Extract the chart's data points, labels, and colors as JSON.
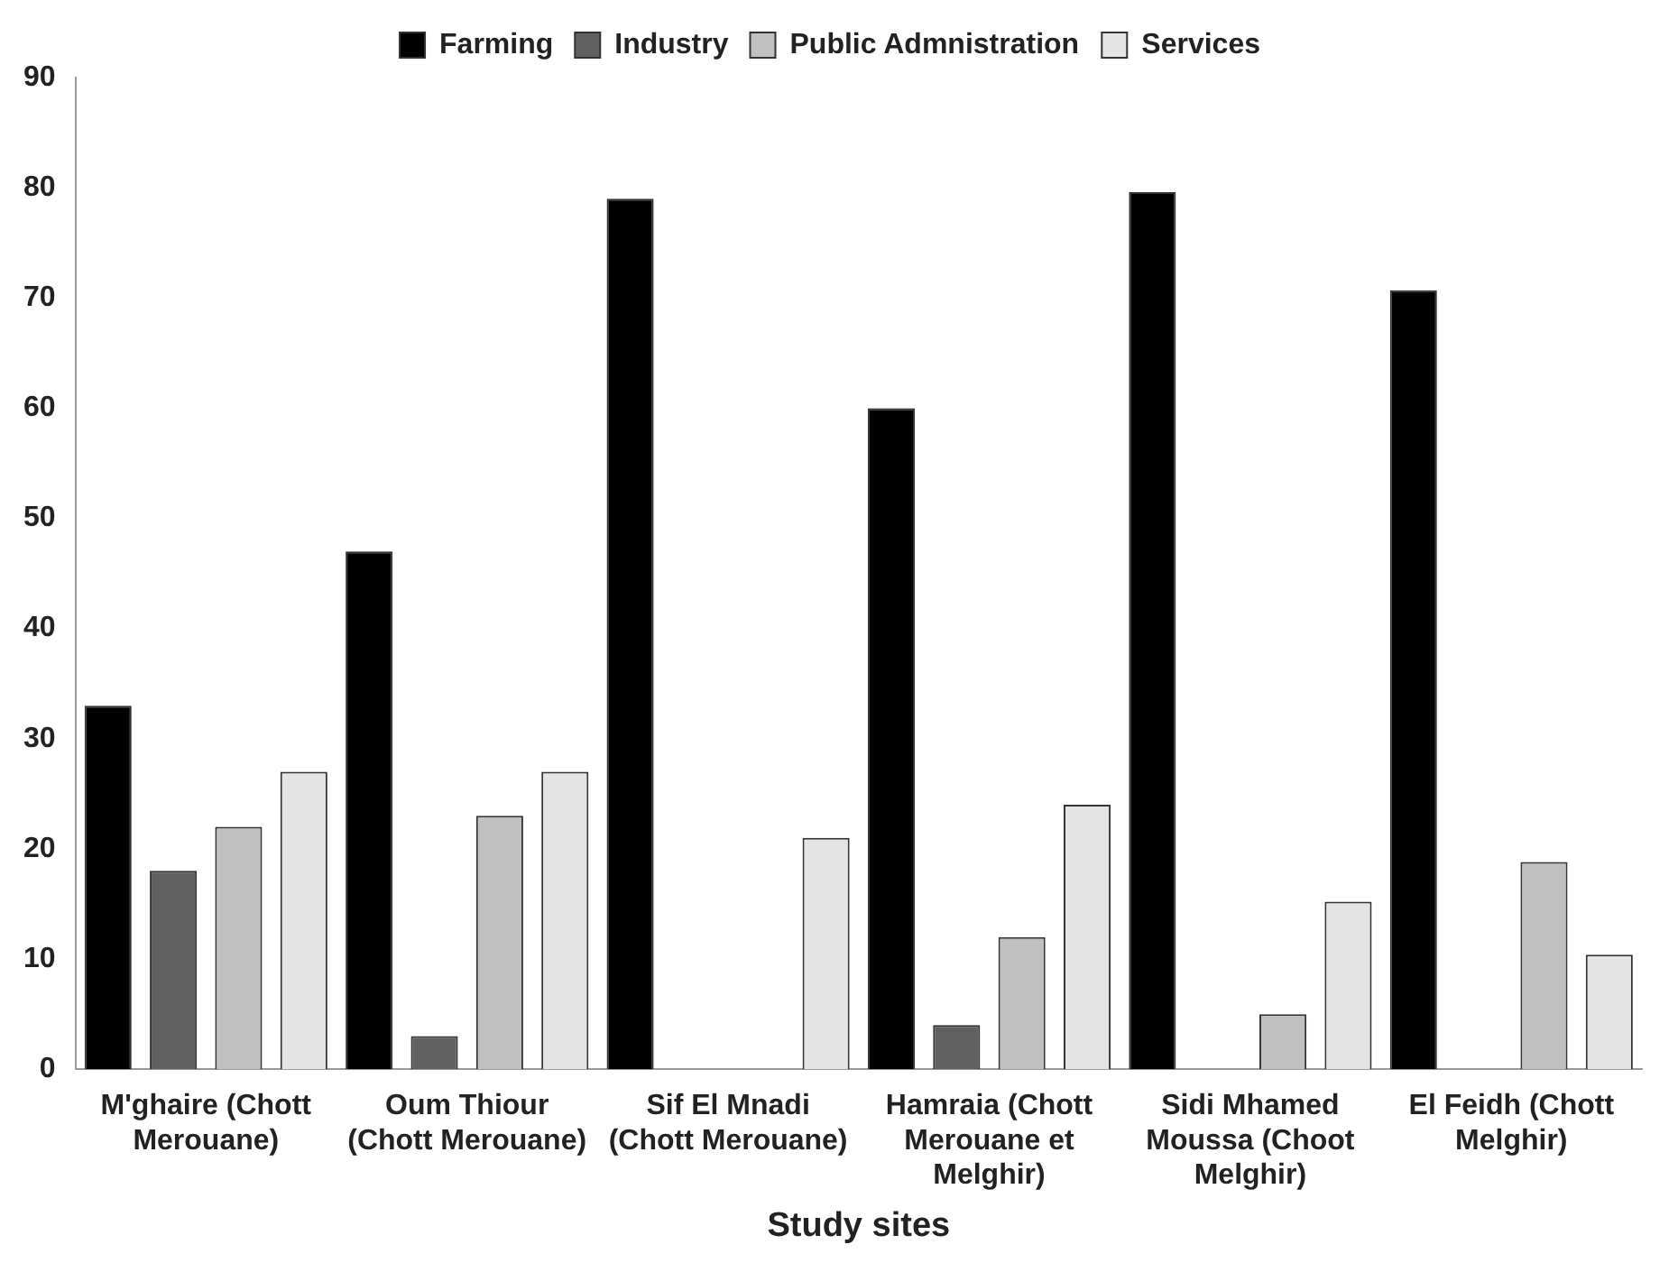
{
  "chart_data": {
    "type": "bar",
    "xlabel": "Study sites",
    "categories": [
      "M'ghaire (Chott Merouane)",
      "Oum Thiour (Chott Merouane)",
      "Sif El Mnadi (Chott Merouane)",
      "Hamraia (Chott Merouane et Melghir)",
      "Sidi Mhamed Moussa (Choot Melghir)",
      "El Feidh (Chott Melghir)"
    ],
    "series": [
      {
        "name": "Farming",
        "color": "#000000",
        "values": [
          33,
          47,
          79,
          60,
          79.6,
          70.7
        ]
      },
      {
        "name": "Industry",
        "color": "#606060",
        "values": [
          18,
          3,
          0,
          4,
          0,
          0
        ]
      },
      {
        "name": "Public Admnistration",
        "color": "#c0c0c0",
        "values": [
          22,
          23,
          0,
          12,
          5,
          18.8
        ]
      },
      {
        "name": "Services",
        "color": "#e4e4e4",
        "values": [
          27,
          27,
          21,
          24,
          15.2,
          10.4
        ]
      }
    ],
    "ylim": [
      0,
      90
    ],
    "yticks": [
      0,
      10,
      20,
      30,
      40,
      50,
      60,
      70,
      80,
      90
    ],
    "grid": false,
    "legend": "top"
  }
}
